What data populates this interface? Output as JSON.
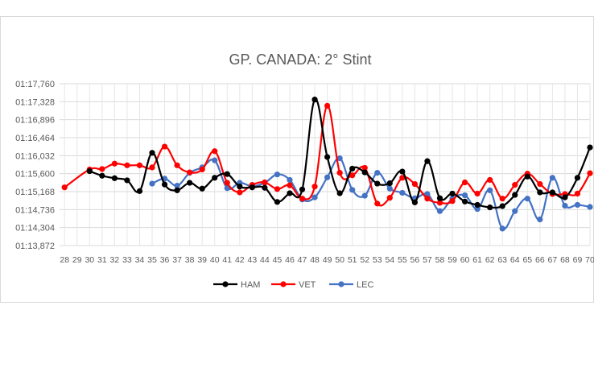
{
  "chart_data": {
    "type": "line",
    "title": "GP. CANADA: 2° Stint",
    "xlabel": "",
    "ylabel": "",
    "categories": [
      "28",
      "29",
      "30",
      "31",
      "32",
      "33",
      "34",
      "35",
      "36",
      "37",
      "38",
      "39",
      "40",
      "41",
      "42",
      "43",
      "44",
      "45",
      "46",
      "47",
      "48",
      "49",
      "50",
      "51",
      "52",
      "53",
      "54",
      "55",
      "56",
      "57",
      "58",
      "59",
      "60",
      "61",
      "62",
      "63",
      "64",
      "65",
      "66",
      "67",
      "68",
      "69",
      "70"
    ],
    "y_axis_labels": [
      "01:13,872",
      "01:14,304",
      "01:14,736",
      "01:15,168",
      "01:15,600",
      "01:16,032",
      "01:16,464",
      "01:16,896",
      "01:17,328",
      "01:17,760"
    ],
    "y_axis_seconds": [
      73.872,
      74.304,
      74.736,
      75.168,
      75.6,
      76.032,
      76.464,
      76.896,
      77.328,
      77.76
    ],
    "ylim": [
      73.872,
      77.76
    ],
    "grid": "vertical-and-horizontal",
    "legend_position": "bottom",
    "series": [
      {
        "name": "HAM",
        "color": "#000000",
        "x": [
          "30",
          "31",
          "32",
          "33",
          "34",
          "35",
          "36",
          "37",
          "38",
          "39",
          "40",
          "41",
          "42",
          "43",
          "44",
          "45",
          "46",
          "47",
          "48",
          "49",
          "50",
          "51",
          "52",
          "53",
          "54",
          "55",
          "56",
          "57",
          "58",
          "59",
          "60",
          "61",
          "62",
          "63",
          "64",
          "65",
          "66",
          "67",
          "68",
          "69",
          "70"
        ],
        "values": [
          75.66,
          75.55,
          75.49,
          75.44,
          75.18,
          76.1,
          75.34,
          75.2,
          75.38,
          75.24,
          75.5,
          75.59,
          75.29,
          75.27,
          75.26,
          74.92,
          75.13,
          75.22,
          77.38,
          76.0,
          75.13,
          75.72,
          75.63,
          75.36,
          75.37,
          75.65,
          74.91,
          75.9,
          75.01,
          75.12,
          74.93,
          74.85,
          74.79,
          74.82,
          75.09,
          75.53,
          75.15,
          75.15,
          75.03,
          75.5,
          76.23
        ]
      },
      {
        "name": "VET",
        "color": "#ff0000",
        "x": [
          "28",
          "30",
          "31",
          "32",
          "33",
          "34",
          "35",
          "36",
          "37",
          "38",
          "39",
          "40",
          "41",
          "42",
          "43",
          "44",
          "45",
          "46",
          "47",
          "48",
          "49",
          "50",
          "51",
          "52",
          "53",
          "54",
          "55",
          "56",
          "57",
          "58",
          "59",
          "60",
          "61",
          "62",
          "63",
          "64",
          "65",
          "66",
          "67",
          "68",
          "69",
          "70"
        ],
        "values": [
          75.27,
          75.7,
          75.71,
          75.84,
          75.8,
          75.8,
          75.75,
          76.25,
          75.8,
          75.63,
          75.7,
          76.14,
          75.38,
          75.15,
          75.33,
          75.39,
          75.23,
          75.32,
          75.0,
          75.29,
          77.23,
          75.62,
          75.56,
          75.74,
          74.88,
          75.02,
          75.5,
          75.35,
          75.0,
          74.9,
          74.94,
          75.39,
          75.12,
          75.45,
          75.0,
          75.33,
          75.6,
          75.35,
          75.11,
          75.11,
          75.12,
          75.61
        ]
      },
      {
        "name": "LEC",
        "color": "#4472c4",
        "x": [
          "35",
          "36",
          "37",
          "38",
          "39",
          "40",
          "41",
          "42",
          "43",
          "44",
          "45",
          "46",
          "47",
          "48",
          "49",
          "50",
          "51",
          "52",
          "53",
          "54",
          "55",
          "56",
          "57",
          "58",
          "59",
          "60",
          "61",
          "62",
          "63",
          "64",
          "65",
          "66",
          "67",
          "68",
          "69",
          "70"
        ],
        "values": [
          75.36,
          75.48,
          75.31,
          75.62,
          75.75,
          75.92,
          75.25,
          75.38,
          75.3,
          75.38,
          75.58,
          75.45,
          74.98,
          75.03,
          75.51,
          75.97,
          75.21,
          75.07,
          75.62,
          75.24,
          75.14,
          75.01,
          75.11,
          74.7,
          75.0,
          75.08,
          74.75,
          75.2,
          74.28,
          74.7,
          75.0,
          74.5,
          75.5,
          74.83,
          74.85,
          74.8
        ]
      }
    ]
  }
}
